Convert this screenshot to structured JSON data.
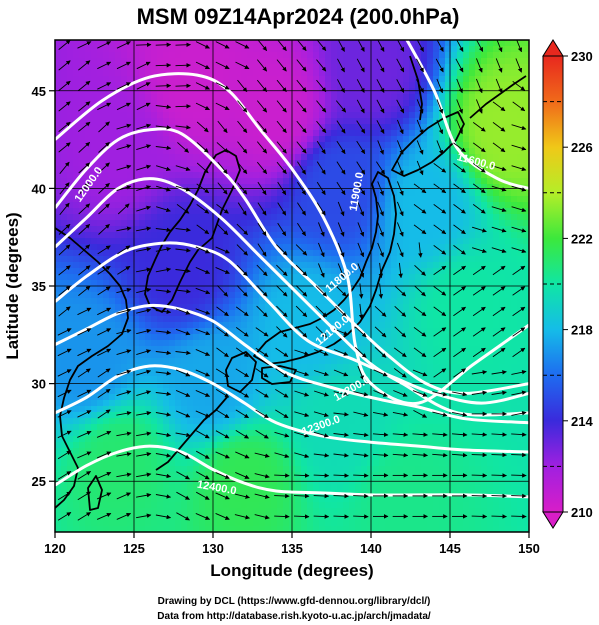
{
  "title": "MSM 09Z14Apr2024 (200.0hPa)",
  "x_axis": {
    "label": "Longitude (degrees)",
    "ticks": [
      "120",
      "125",
      "130",
      "135",
      "140",
      "145",
      "150"
    ]
  },
  "y_axis": {
    "label": "Latitude  (degrees)",
    "ticks": [
      "25",
      "30",
      "35",
      "40",
      "45"
    ]
  },
  "colorbar": {
    "ticks": [
      "230",
      "226",
      "222",
      "218",
      "214",
      "210"
    ],
    "min": 210,
    "max": 230,
    "colors_low_to_high": [
      "#d81ec8",
      "#a020e0",
      "#3a2adc",
      "#1e6cf0",
      "#15bce8",
      "#10e6a4",
      "#3ce83c",
      "#b4ee28",
      "#f0c818",
      "#f06a1a",
      "#e8281e"
    ]
  },
  "contour_labels": [
    "12000.0",
    "11900.0",
    "11800.0",
    "12100.0",
    "12200.0",
    "12300.0",
    "12400.0",
    "11600.0"
  ],
  "credits": [
    "Drawing by DCL (https://www.gfd-dennou.org/library/dcl/)",
    "Data from http://database.rish.kyoto-u.ac.jp/arch/jmadata/"
  ],
  "chart_data": {
    "type": "heatmap",
    "title": "MSM 09Z14Apr2024 (200.0hPa)",
    "xlabel": "Longitude (degrees)",
    "ylabel": "Latitude  (degrees)",
    "xlim": [
      120,
      150
    ],
    "ylim": [
      22.4,
      47.6
    ],
    "colorbar_range": [
      210,
      230
    ],
    "contours": [
      {
        "label": "11600.0",
        "points": [
          [
            142,
            48
          ],
          [
            144,
            45
          ],
          [
            145.5,
            42
          ],
          [
            148,
            40.5
          ],
          [
            150,
            40
          ]
        ]
      },
      {
        "label": "11800.0",
        "points": [
          [
            120,
            42.5
          ],
          [
            123,
            44.5
          ],
          [
            126,
            45.7
          ],
          [
            129,
            45.8
          ],
          [
            131,
            45
          ],
          [
            133,
            43
          ],
          [
            135,
            41
          ],
          [
            137,
            38.5
          ],
          [
            138.5,
            35.5
          ],
          [
            139,
            32
          ],
          [
            140,
            30
          ],
          [
            143,
            29
          ],
          [
            146.5,
            31
          ],
          [
            150,
            33
          ]
        ]
      },
      {
        "label": "11900.0",
        "points": [
          [
            120,
            39
          ],
          [
            122,
            41
          ],
          [
            124,
            42.5
          ],
          [
            126,
            43
          ],
          [
            128,
            42.8
          ],
          [
            130.5,
            41
          ],
          [
            132,
            39.5
          ],
          [
            134,
            37
          ],
          [
            136.5,
            35
          ],
          [
            139,
            33
          ],
          [
            141,
            31.5
          ],
          [
            143.5,
            30
          ],
          [
            146,
            29.5
          ],
          [
            150,
            30
          ]
        ]
      },
      {
        "label": "12000.0",
        "points": [
          [
            120,
            37
          ],
          [
            122,
            38.5
          ],
          [
            124,
            40
          ],
          [
            126,
            40.5
          ],
          [
            128,
            40
          ],
          [
            130.5,
            38.5
          ],
          [
            133,
            36.5
          ],
          [
            135.5,
            34.5
          ],
          [
            138,
            32.5
          ],
          [
            140,
            31
          ],
          [
            142,
            30
          ],
          [
            145.5,
            28.5
          ],
          [
            150,
            28.5
          ]
        ]
      },
      {
        "label": "12100.0",
        "points": [
          [
            120,
            34.2
          ],
          [
            122,
            35.5
          ],
          [
            124.5,
            36.8
          ],
          [
            127,
            37.2
          ],
          [
            129,
            37
          ],
          [
            131,
            36.3
          ],
          [
            133.5,
            34.2
          ],
          [
            136,
            32.2
          ],
          [
            139,
            31.2
          ],
          [
            141.5,
            30.3
          ],
          [
            144,
            29.5
          ],
          [
            147,
            29
          ],
          [
            150,
            29.5
          ]
        ]
      },
      {
        "label": "12200.0",
        "points": [
          [
            120,
            32
          ],
          [
            122,
            32.8
          ],
          [
            124,
            33.6
          ],
          [
            126,
            34
          ],
          [
            128,
            33.8
          ],
          [
            130,
            33.2
          ],
          [
            132,
            32
          ],
          [
            134.5,
            30.6
          ],
          [
            137.5,
            29.8
          ],
          [
            140.5,
            29.2
          ],
          [
            143,
            28.8
          ],
          [
            146,
            28.2
          ],
          [
            150,
            28
          ]
        ]
      },
      {
        "label": "12300.0",
        "points": [
          [
            120,
            28.5
          ],
          [
            122,
            29.3
          ],
          [
            124,
            30.4
          ],
          [
            126,
            30.9
          ],
          [
            128,
            30.7
          ],
          [
            130,
            30
          ],
          [
            132,
            29
          ],
          [
            134,
            28
          ],
          [
            137,
            27.3
          ],
          [
            140,
            27
          ],
          [
            143,
            26.8
          ],
          [
            146,
            26.6
          ],
          [
            150,
            26.5
          ]
        ]
      },
      {
        "label": "12400.0",
        "points": [
          [
            120,
            24.8
          ],
          [
            122,
            25.8
          ],
          [
            124,
            26.5
          ],
          [
            126,
            26.8
          ],
          [
            128,
            26.5
          ],
          [
            130,
            25.6
          ],
          [
            132,
            24.9
          ],
          [
            134,
            24.5
          ],
          [
            137,
            24.4
          ],
          [
            140,
            24.3
          ],
          [
            143,
            24.3
          ],
          [
            146,
            24.3
          ],
          [
            150,
            24.2
          ]
        ]
      }
    ],
    "contour_label_positions": [
      {
        "label": "12000.0",
        "x": 122.3,
        "y": 40.1,
        "angle": -55
      },
      {
        "label": "11900.0",
        "x": 139.3,
        "y": 39.8,
        "angle": -80
      },
      {
        "label": "11800.0",
        "x": 138.3,
        "y": 35.3,
        "angle": -40
      },
      {
        "label": "12100.0",
        "x": 137.7,
        "y": 32.6,
        "angle": -40
      },
      {
        "label": "12200.0",
        "x": 138.9,
        "y": 29.6,
        "angle": -30
      },
      {
        "label": "12300.0",
        "x": 136.9,
        "y": 27.7,
        "angle": -20
      },
      {
        "label": "12400.0",
        "x": 130.2,
        "y": 24.5,
        "angle": 10
      },
      {
        "label": "11600.0",
        "x": 146.6,
        "y": 41.2,
        "angle": 15
      }
    ],
    "color_field_centers": [
      {
        "x": 129,
        "y": 45.5,
        "value": 210.5
      },
      {
        "x": 134,
        "y": 44,
        "value": 210.5
      },
      {
        "x": 124,
        "y": 42,
        "value": 212
      },
      {
        "x": 140,
        "y": 46,
        "value": 213
      },
      {
        "x": 128,
        "y": 36,
        "value": 214
      },
      {
        "x": 138,
        "y": 40,
        "value": 215
      },
      {
        "x": 143.5,
        "y": 39,
        "value": 218
      },
      {
        "x": 148.5,
        "y": 43,
        "value": 223.5
      },
      {
        "x": 146,
        "y": 34,
        "value": 220
      },
      {
        "x": 136,
        "y": 33,
        "value": 218
      },
      {
        "x": 130,
        "y": 30,
        "value": 217.5
      },
      {
        "x": 122,
        "y": 31,
        "value": 217
      },
      {
        "x": 124,
        "y": 26,
        "value": 221
      },
      {
        "x": 132,
        "y": 25,
        "value": 221.5
      },
      {
        "x": 142,
        "y": 24,
        "value": 220.5
      },
      {
        "x": 138,
        "y": 28,
        "value": 219.5
      }
    ]
  }
}
